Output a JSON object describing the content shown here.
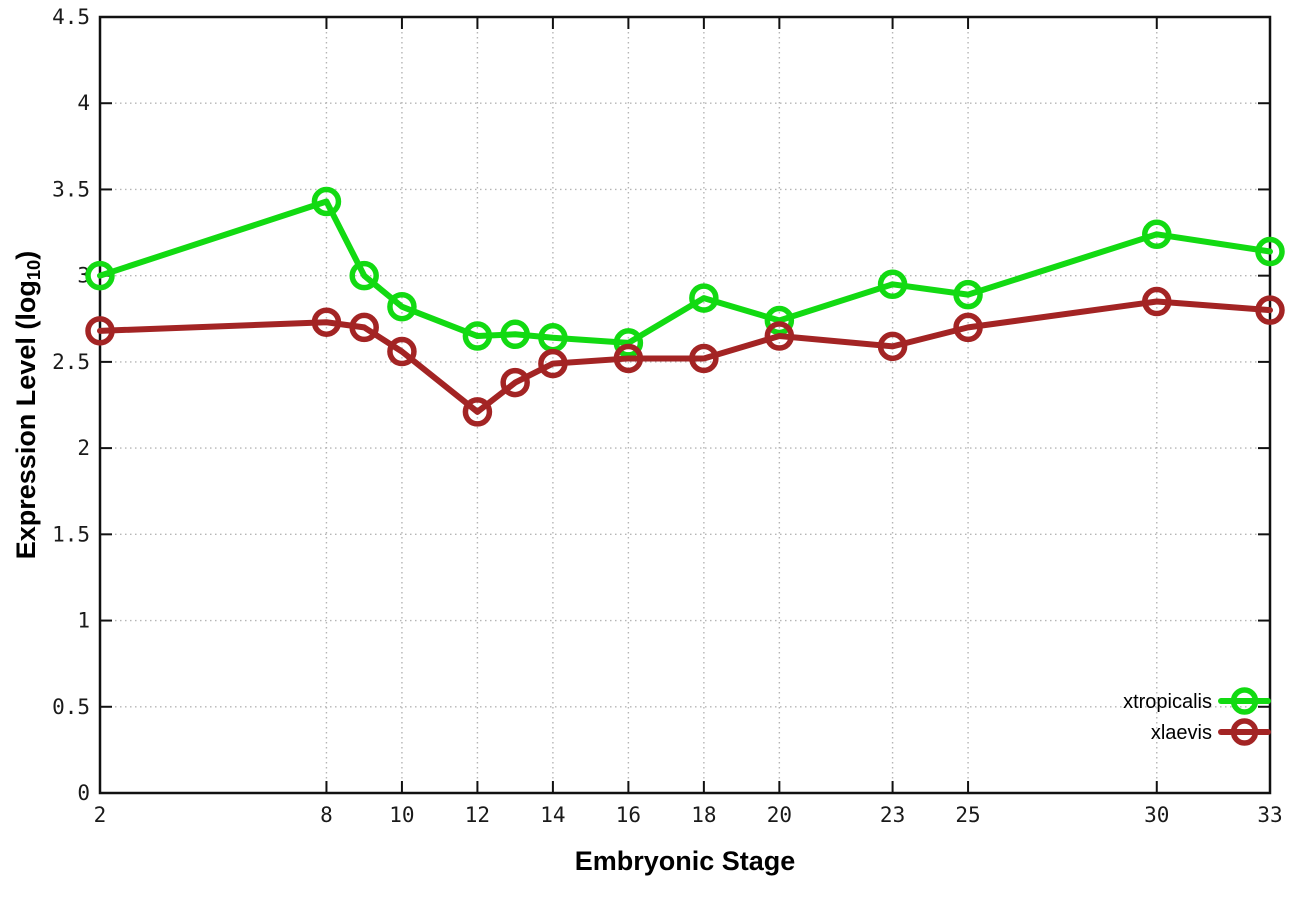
{
  "chart_data": {
    "type": "line",
    "title": "",
    "xlabel": "Embryonic Stage",
    "ylabel": "Expression Level (log10)",
    "ylabel_parts": {
      "prefix": "Expression Level (log",
      "subscript": "10",
      "suffix": ")"
    },
    "xlim": [
      2,
      33
    ],
    "ylim": [
      0,
      4.5
    ],
    "xticks": [
      2,
      8,
      10,
      12,
      14,
      16,
      18,
      20,
      23,
      25,
      30,
      33
    ],
    "yticks": [
      0,
      0.5,
      1,
      1.5,
      2,
      2.5,
      3,
      3.5,
      4,
      4.5
    ],
    "grid": "dotted",
    "marker": "open-circle",
    "legend_position": "bottom-right",
    "x": [
      2,
      8,
      9,
      10,
      12,
      13,
      14,
      16,
      18,
      20,
      23,
      25,
      30,
      33
    ],
    "series": [
      {
        "name": "xtropicalis",
        "color": "#12da12",
        "values": [
          3.0,
          3.43,
          3.0,
          2.82,
          2.65,
          2.66,
          2.64,
          2.61,
          2.87,
          2.74,
          2.95,
          2.89,
          3.24,
          3.14
        ]
      },
      {
        "name": "xlaevis",
        "color": "#a32424",
        "values": [
          2.68,
          2.73,
          2.7,
          2.56,
          2.21,
          2.38,
          2.49,
          2.52,
          2.52,
          2.65,
          2.59,
          2.7,
          2.85,
          2.8
        ]
      }
    ]
  },
  "style": {
    "background": "#ffffff",
    "border_color": "#111111",
    "grid_color": "#b5b5b5",
    "tick_label_color": "#1a1a1a"
  }
}
